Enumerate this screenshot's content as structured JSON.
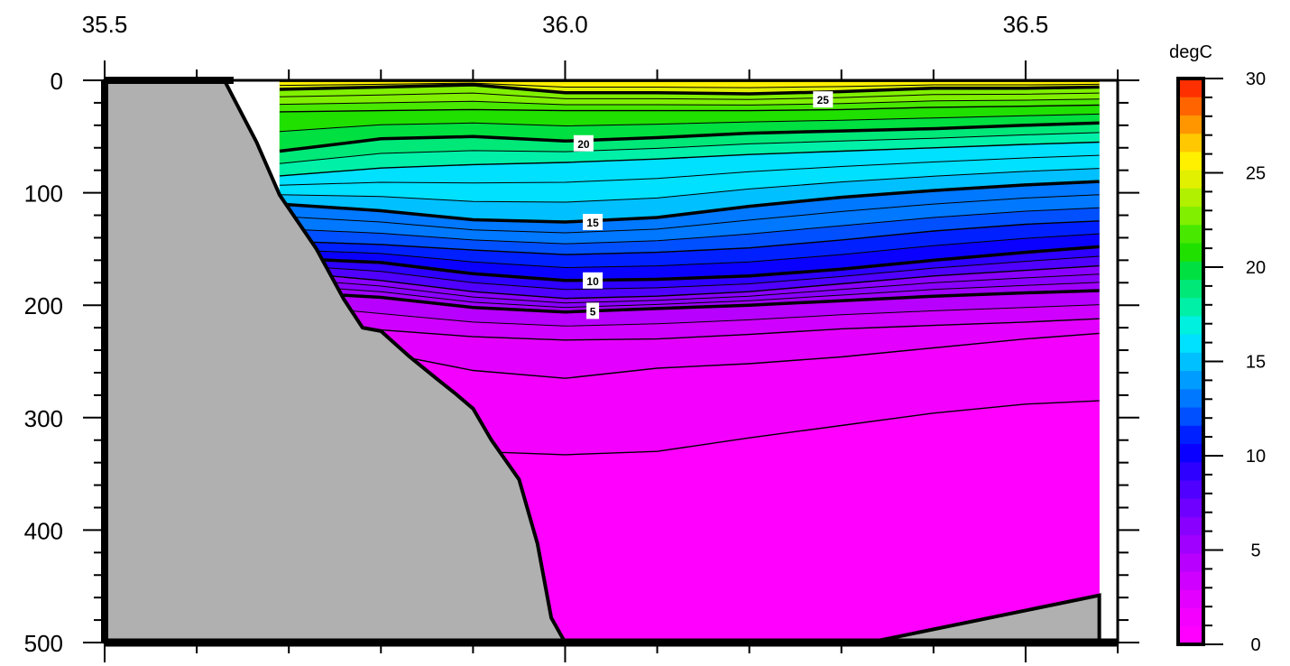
{
  "chart_data": {
    "type": "heatmap",
    "title": "",
    "units_label": "degC",
    "x_axis": {
      "range": [
        35.5,
        36.6
      ],
      "major_ticks": [
        35.5,
        36.0,
        36.5
      ],
      "tick_labels": [
        "35.5",
        "36.0",
        "36.5"
      ],
      "minor_step": 0.1,
      "position": "top"
    },
    "y_axis": {
      "range": [
        0,
        500
      ],
      "reversed": true,
      "major_ticks": [
        0,
        100,
        200,
        300,
        400,
        500
      ],
      "tick_labels": [
        "0",
        "100",
        "200",
        "300",
        "400",
        "500"
      ],
      "minor_step": 20
    },
    "colorbar": {
      "min": 0,
      "max": 30,
      "step": 1,
      "tick_values": [
        0,
        5,
        10,
        15,
        20,
        25,
        30
      ],
      "tick_labels": [
        "0",
        "5",
        "10",
        "15",
        "20",
        "25",
        "30"
      ],
      "colors": [
        "#ff00ff",
        "#f300ff",
        "#e400ff",
        "#cf00ff",
        "#b800ff",
        "#a000ff",
        "#8a00ff",
        "#6f00ff",
        "#5000ff",
        "#2e00ff",
        "#0a00ff",
        "#0020ff",
        "#0050ff",
        "#0078ff",
        "#009cff",
        "#00c0ff",
        "#00e0ff",
        "#00f0e0",
        "#00f0a8",
        "#00e878",
        "#00e040",
        "#20e000",
        "#48e800",
        "#80f000",
        "#b0f000",
        "#e0f000",
        "#fff000",
        "#ffc800",
        "#ff9600",
        "#ff6400",
        "#ff3000"
      ]
    },
    "x_samples": [
      35.69,
      35.8,
      35.9,
      36.0,
      36.1,
      36.2,
      36.3,
      36.4,
      36.5,
      36.58
    ],
    "isotherms": [
      {
        "value": 27,
        "depths": [
          1,
          1,
          1,
          1,
          1,
          1,
          1,
          1,
          1,
          1
        ]
      },
      {
        "value": 25,
        "depths": [
          8,
          6,
          4,
          11,
          11,
          12,
          10,
          7,
          7,
          6
        ]
      },
      {
        "value": 22,
        "depths": [
          28,
          27,
          26,
          27,
          27,
          27,
          26,
          24,
          23,
          22
        ]
      },
      {
        "value": 20,
        "depths": [
          63,
          52,
          50,
          54,
          51,
          47,
          45,
          43,
          40,
          38
        ]
      },
      {
        "value": 18,
        "depths": [
          85,
          78,
          75,
          73,
          70,
          66,
          63,
          60,
          57,
          55
        ]
      },
      {
        "value": 15,
        "depths": [
          110,
          116,
          124,
          126,
          122,
          112,
          104,
          98,
          93,
          90
        ]
      },
      {
        "value": 12,
        "depths": [
          143,
          146,
          151,
          155,
          153,
          149,
          142,
          134,
          128,
          125
        ]
      },
      {
        "value": 10,
        "depths": [
          158,
          162,
          172,
          178,
          177,
          174,
          168,
          160,
          153,
          148
        ]
      },
      {
        "value": 8,
        "depths": [
          170,
          178,
          188,
          194,
          192,
          188,
          181,
          174,
          169,
          165
        ]
      },
      {
        "value": 5,
        "depths": [
          188,
          193,
          202,
          206,
          203,
          200,
          196,
          192,
          189,
          187
        ]
      },
      {
        "value": 3,
        "depths": [
          210,
          222,
          228,
          231,
          230,
          226,
          221,
          218,
          215,
          212
        ]
      },
      {
        "value": 2,
        "depths": [
          228,
          242,
          258,
          265,
          256,
          252,
          246,
          238,
          230,
          225
        ]
      },
      {
        "value": 1,
        "depths": [
          270,
          300,
          330,
          333,
          330,
          318,
          307,
          296,
          288,
          285
        ]
      }
    ],
    "contour_labels": [
      {
        "text": "25",
        "x": 36.28,
        "y": 17
      },
      {
        "text": "20",
        "x": 36.02,
        "y": 56
      },
      {
        "text": "15",
        "x": 36.03,
        "y": 126
      },
      {
        "text": "10",
        "x": 36.03,
        "y": 178
      },
      {
        "text": "5",
        "x": 36.03,
        "y": 205
      }
    ],
    "data_x_range": [
      35.69,
      36.58
    ],
    "land_color": "#b0b0b0",
    "land_boundary": [
      {
        "x": 35.5,
        "y": 0
      },
      {
        "x": 35.63,
        "y": 0
      },
      {
        "x": 35.665,
        "y": 55
      },
      {
        "x": 35.69,
        "y": 102
      },
      {
        "x": 35.73,
        "y": 150
      },
      {
        "x": 35.76,
        "y": 195
      },
      {
        "x": 35.78,
        "y": 220
      },
      {
        "x": 35.8,
        "y": 223
      },
      {
        "x": 35.83,
        "y": 245
      },
      {
        "x": 35.86,
        "y": 265
      },
      {
        "x": 35.88,
        "y": 278
      },
      {
        "x": 35.9,
        "y": 292
      },
      {
        "x": 35.92,
        "y": 320
      },
      {
        "x": 35.95,
        "y": 355
      },
      {
        "x": 35.97,
        "y": 412
      },
      {
        "x": 35.985,
        "y": 478
      },
      {
        "x": 36.0,
        "y": 500
      },
      {
        "x": 35.5,
        "y": 500
      }
    ],
    "land_boundary_right": [
      {
        "x": 36.33,
        "y": 500
      },
      {
        "x": 36.58,
        "y": 458
      },
      {
        "x": 36.58,
        "y": 500
      }
    ]
  }
}
